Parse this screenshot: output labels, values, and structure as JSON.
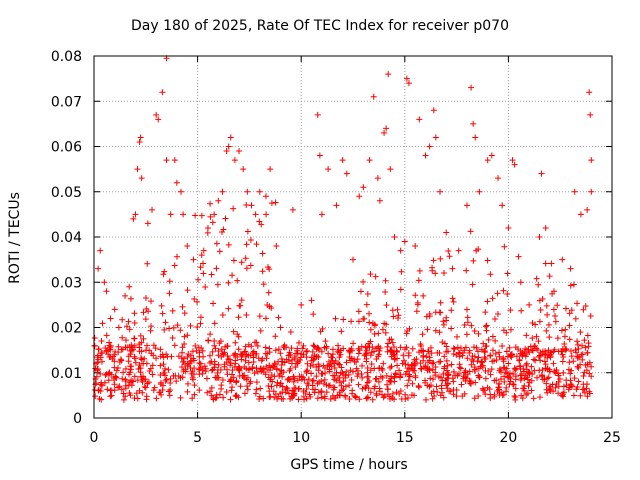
{
  "chart_data": {
    "type": "scatter",
    "title": "Day 180 of 2025, Rate Of TEC Index for receiver p070",
    "xlabel": "GPS time / hours",
    "ylabel": "ROTI / TECUs",
    "xlim": [
      0,
      25
    ],
    "ylim": [
      0,
      0.08
    ],
    "xticks": [
      "0",
      "5",
      "10",
      "15",
      "20",
      "25"
    ],
    "yticks": [
      "0",
      "0.01",
      "0.02",
      "0.03",
      "0.04",
      "0.05",
      "0.06",
      "0.07",
      "0.08"
    ],
    "grid": true,
    "marker": "+",
    "color": "#ff0000",
    "series": [
      {
        "points": [
          [
            0.1,
            0.012
          ],
          [
            0.2,
            0.033
          ],
          [
            0.3,
            0.037
          ],
          [
            0.5,
            0.03
          ],
          [
            0.6,
            0.028
          ],
          [
            0.8,
            0.022
          ],
          [
            1.0,
            0.024
          ],
          [
            1.2,
            0.02
          ],
          [
            1.5,
            0.027
          ],
          [
            1.7,
            0.029
          ],
          [
            1.9,
            0.044
          ],
          [
            2.0,
            0.045
          ],
          [
            2.1,
            0.055
          ],
          [
            2.2,
            0.061
          ],
          [
            2.25,
            0.062
          ],
          [
            2.3,
            0.053
          ],
          [
            2.6,
            0.043
          ],
          [
            2.8,
            0.046
          ],
          [
            3.0,
            0.067
          ],
          [
            3.1,
            0.066
          ],
          [
            3.3,
            0.072
          ],
          [
            3.5,
            0.0795
          ],
          [
            3.5,
            0.057
          ],
          [
            3.7,
            0.045
          ],
          [
            3.9,
            0.057
          ],
          [
            4.0,
            0.052
          ],
          [
            4.2,
            0.05
          ],
          [
            4.3,
            0.045
          ],
          [
            4.5,
            0.038
          ],
          [
            4.8,
            0.035
          ],
          [
            5.2,
            0.036
          ],
          [
            5.5,
            0.042
          ],
          [
            5.8,
            0.045
          ],
          [
            6.0,
            0.048
          ],
          [
            6.2,
            0.05
          ],
          [
            6.4,
            0.059
          ],
          [
            6.5,
            0.06
          ],
          [
            6.6,
            0.062
          ],
          [
            6.8,
            0.057
          ],
          [
            7.0,
            0.059
          ],
          [
            7.2,
            0.055
          ],
          [
            7.4,
            0.05
          ],
          [
            7.6,
            0.047
          ],
          [
            7.8,
            0.045
          ],
          [
            8.0,
            0.05
          ],
          [
            8.3,
            0.049
          ],
          [
            8.5,
            0.055
          ],
          [
            8.8,
            0.038
          ],
          [
            9.0,
            0.02
          ],
          [
            9.5,
            0.019
          ],
          [
            9.6,
            0.046
          ],
          [
            10.0,
            0.025
          ],
          [
            10.5,
            0.026
          ],
          [
            10.8,
            0.067
          ],
          [
            10.9,
            0.058
          ],
          [
            11.0,
            0.045
          ],
          [
            11.3,
            0.055
          ],
          [
            11.7,
            0.047
          ],
          [
            12.0,
            0.057
          ],
          [
            12.2,
            0.054
          ],
          [
            12.5,
            0.035
          ],
          [
            12.8,
            0.049
          ],
          [
            13.0,
            0.051
          ],
          [
            13.3,
            0.057
          ],
          [
            13.5,
            0.071
          ],
          [
            13.7,
            0.053
          ],
          [
            13.8,
            0.048
          ],
          [
            14.0,
            0.063
          ],
          [
            14.1,
            0.064
          ],
          [
            14.2,
            0.076
          ],
          [
            14.3,
            0.055
          ],
          [
            14.5,
            0.04
          ],
          [
            14.8,
            0.037
          ],
          [
            15.0,
            0.039
          ],
          [
            15.1,
            0.075
          ],
          [
            15.2,
            0.074
          ],
          [
            15.5,
            0.038
          ],
          [
            15.7,
            0.066
          ],
          [
            16.0,
            0.058
          ],
          [
            16.2,
            0.06
          ],
          [
            16.4,
            0.068
          ],
          [
            16.5,
            0.062
          ],
          [
            16.7,
            0.05
          ],
          [
            17.0,
            0.041
          ],
          [
            17.3,
            0.033
          ],
          [
            17.6,
            0.037
          ],
          [
            18.0,
            0.047
          ],
          [
            18.2,
            0.073
          ],
          [
            18.3,
            0.065
          ],
          [
            18.4,
            0.062
          ],
          [
            18.6,
            0.05
          ],
          [
            19.0,
            0.057
          ],
          [
            19.2,
            0.058
          ],
          [
            19.5,
            0.053
          ],
          [
            19.7,
            0.047
          ],
          [
            20.0,
            0.042
          ],
          [
            20.2,
            0.057
          ],
          [
            20.3,
            0.056
          ],
          [
            20.6,
            0.03
          ],
          [
            21.0,
            0.025
          ],
          [
            21.5,
            0.04
          ],
          [
            21.6,
            0.054
          ],
          [
            21.8,
            0.042
          ],
          [
            22.2,
            0.028
          ],
          [
            22.6,
            0.035
          ],
          [
            23.0,
            0.033
          ],
          [
            23.2,
            0.05
          ],
          [
            23.5,
            0.045
          ],
          [
            23.8,
            0.046
          ],
          [
            23.9,
            0.072
          ],
          [
            23.95,
            0.067
          ],
          [
            24.0,
            0.057
          ],
          [
            24.0,
            0.05
          ]
        ]
      }
    ]
  }
}
